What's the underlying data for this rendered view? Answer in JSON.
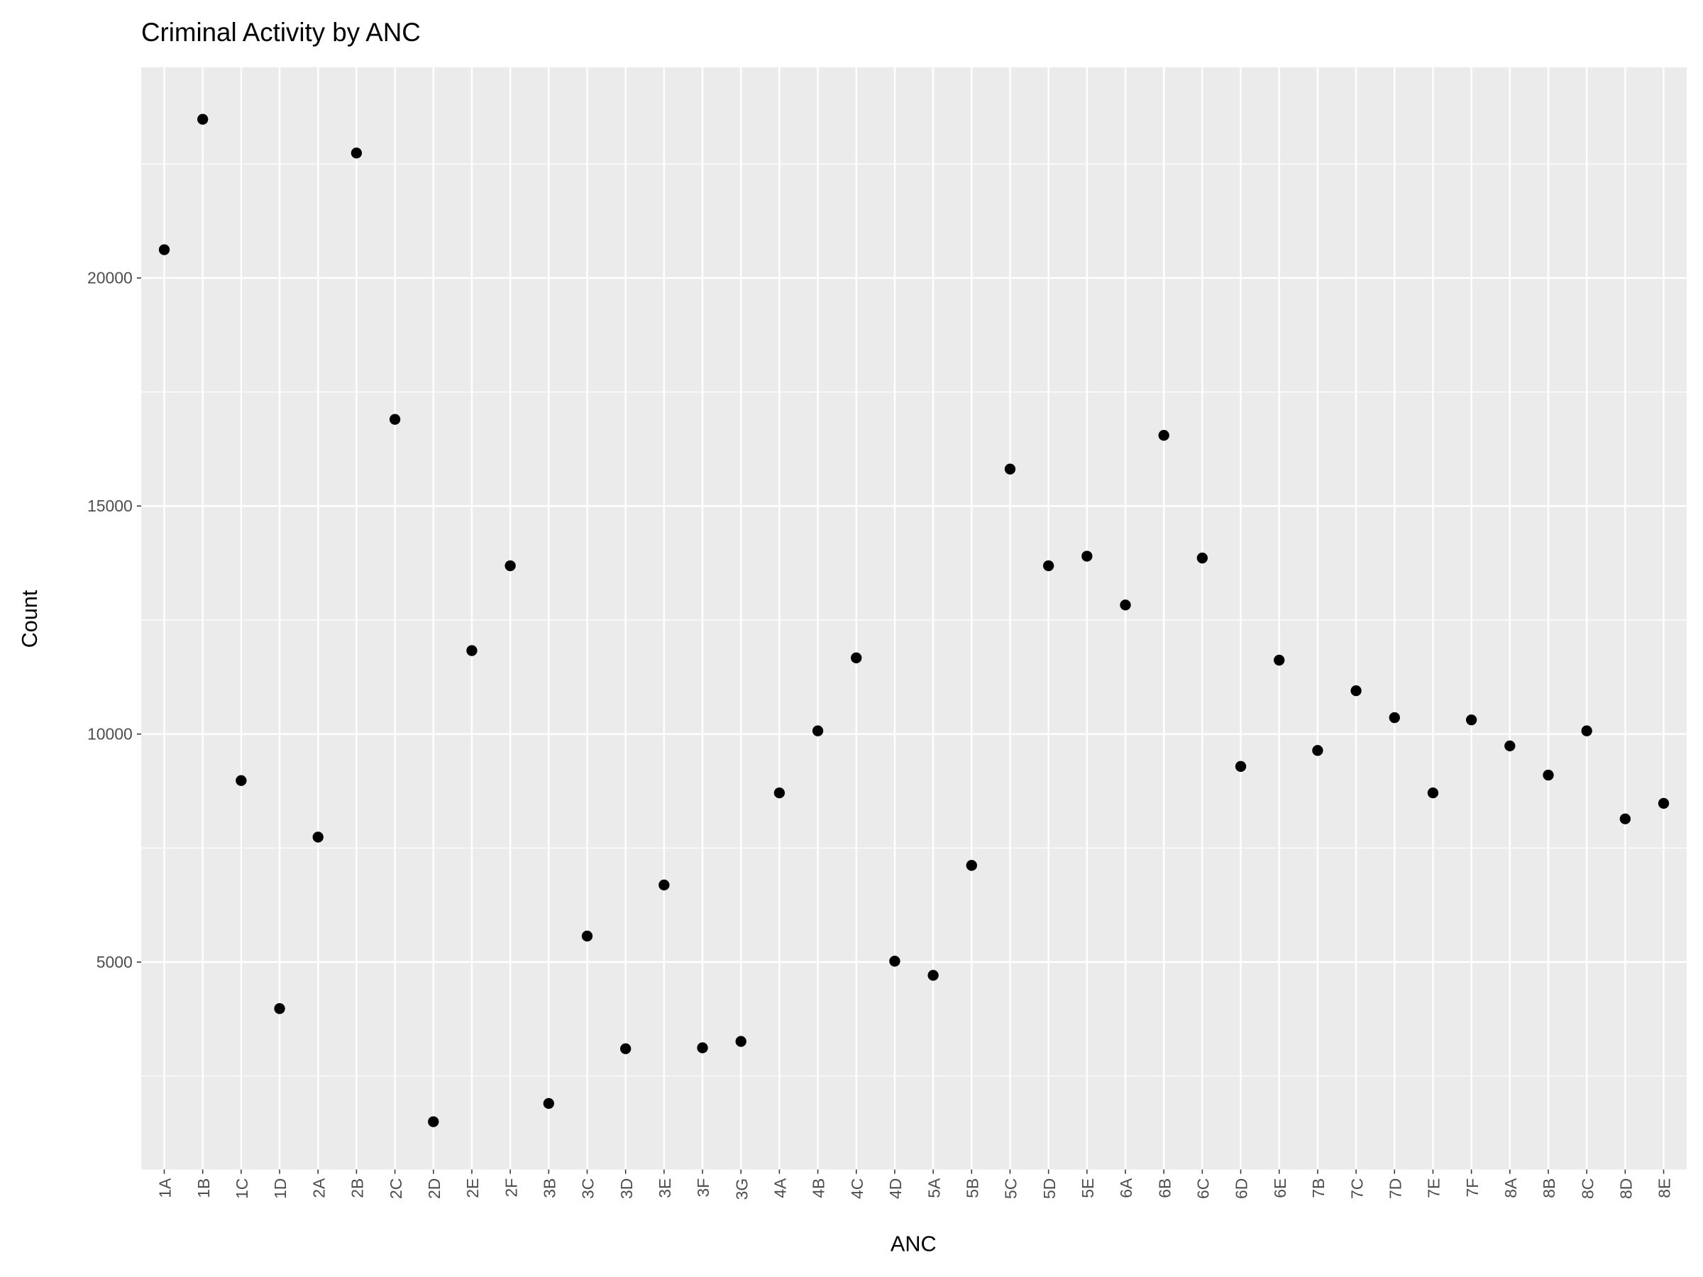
{
  "chart_data": {
    "type": "scatter",
    "title": "Criminal Activity by ANC",
    "x_label": "ANC",
    "y_label": "Count",
    "categories": [
      "1A",
      "1B",
      "1C",
      "1D",
      "2A",
      "2B",
      "2C",
      "2D",
      "2E",
      "2F",
      "3B",
      "3C",
      "3D",
      "3E",
      "3F",
      "3G",
      "4A",
      "4B",
      "4C",
      "4D",
      "5A",
      "5B",
      "5C",
      "5D",
      "5E",
      "6A",
      "6B",
      "6C",
      "6D",
      "6E",
      "7B",
      "7C",
      "7D",
      "7E",
      "7F",
      "8A",
      "8B",
      "8C",
      "8D",
      "8E"
    ],
    "values": [
      20620,
      23480,
      8980,
      3980,
      7740,
      22740,
      16900,
      1500,
      11830,
      13690,
      1900,
      5570,
      3100,
      6690,
      3120,
      3260,
      8710,
      10070,
      11670,
      5020,
      4710,
      7120,
      15810,
      13690,
      13900,
      12830,
      16550,
      13860,
      9290,
      11620,
      9640,
      10950,
      10360,
      8710,
      10310,
      9740,
      9100,
      10070,
      8140,
      8480
    ],
    "color": "#000000",
    "ylim": [
      452,
      24619
    ],
    "yticks": [
      5000,
      10000,
      15000,
      20000
    ],
    "grid": true
  }
}
